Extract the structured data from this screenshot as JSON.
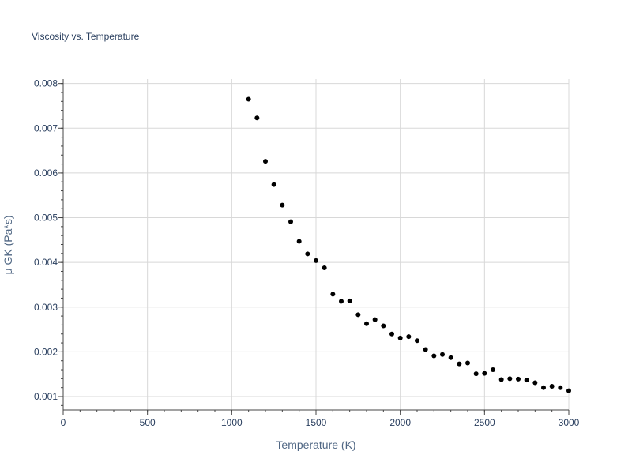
{
  "chart_data": {
    "type": "scatter",
    "title": "Viscosity vs. Temperature",
    "xlabel": "Temperature (K)",
    "ylabel": "μ GK (Pa*s)",
    "xlim": [
      0,
      3000
    ],
    "ylim": [
      0.0007,
      0.0081
    ],
    "x_ticks": [
      0,
      500,
      1000,
      1500,
      2000,
      2500,
      3000
    ],
    "x_tick_labels": [
      "0",
      "500",
      "1000",
      "1500",
      "2000",
      "2500",
      "3000"
    ],
    "y_ticks": [
      0.001,
      0.002,
      0.003,
      0.004,
      0.005,
      0.006,
      0.007,
      0.008
    ],
    "y_tick_labels": [
      "0.001",
      "0.002",
      "0.003",
      "0.004",
      "0.005",
      "0.006",
      "0.007",
      "0.008"
    ],
    "grid": true,
    "marker_color": "#000000",
    "series": [
      {
        "x": [
          1100,
          1150,
          1200,
          1250,
          1300,
          1350,
          1400,
          1450,
          1500,
          1550,
          1600,
          1650,
          1700,
          1750,
          1800,
          1850,
          1900,
          1950,
          2000,
          2050,
          2100,
          2150,
          2200,
          2250,
          2300,
          2350,
          2400,
          2450,
          2500,
          2550,
          2600,
          2650,
          2700,
          2750,
          2800,
          2850,
          2900,
          2950,
          3000
        ],
        "y": [
          0.00765,
          0.00723,
          0.00626,
          0.00574,
          0.00528,
          0.00491,
          0.00447,
          0.00419,
          0.00404,
          0.00388,
          0.00329,
          0.00313,
          0.00314,
          0.00283,
          0.00263,
          0.00272,
          0.00258,
          0.0024,
          0.00231,
          0.00234,
          0.00225,
          0.00205,
          0.00191,
          0.00194,
          0.00187,
          0.00173,
          0.00175,
          0.00151,
          0.00152,
          0.0016,
          0.00138,
          0.0014,
          0.00139,
          0.00137,
          0.00131,
          0.0012,
          0.00123,
          0.0012,
          0.00113
        ]
      }
    ]
  }
}
